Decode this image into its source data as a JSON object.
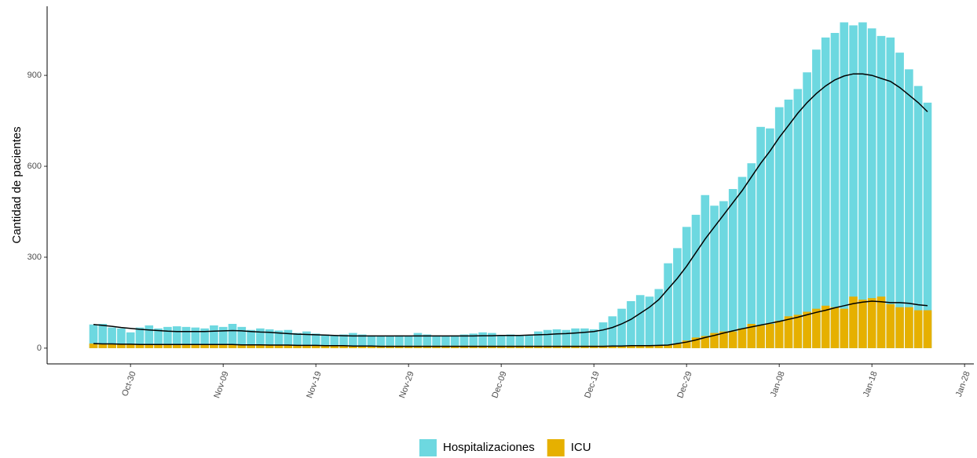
{
  "chart_data": {
    "type": "bar",
    "y_label": "Cantidad de pacientes",
    "x": [
      "Oct-26",
      "Oct-27",
      "Oct-28",
      "Oct-29",
      "Oct-30",
      "Oct-31",
      "Nov-01",
      "Nov-02",
      "Nov-03",
      "Nov-04",
      "Nov-05",
      "Nov-06",
      "Nov-07",
      "Nov-08",
      "Nov-09",
      "Nov-10",
      "Nov-11",
      "Nov-12",
      "Nov-13",
      "Nov-14",
      "Nov-15",
      "Nov-16",
      "Nov-17",
      "Nov-18",
      "Nov-19",
      "Nov-20",
      "Nov-21",
      "Nov-22",
      "Nov-23",
      "Nov-24",
      "Nov-25",
      "Nov-26",
      "Nov-27",
      "Nov-28",
      "Nov-29",
      "Nov-30",
      "Dec-01",
      "Dec-02",
      "Dec-03",
      "Dec-04",
      "Dec-05",
      "Dec-06",
      "Dec-07",
      "Dec-08",
      "Dec-09",
      "Dec-10",
      "Dec-11",
      "Dec-12",
      "Dec-13",
      "Dec-14",
      "Dec-15",
      "Dec-16",
      "Dec-17",
      "Dec-18",
      "Dec-19",
      "Dec-20",
      "Dec-21",
      "Dec-22",
      "Dec-23",
      "Dec-24",
      "Dec-25",
      "Dec-26",
      "Dec-27",
      "Dec-28",
      "Dec-29",
      "Dec-30",
      "Dec-31",
      "Jan-01",
      "Jan-02",
      "Jan-03",
      "Jan-04",
      "Jan-05",
      "Jan-06",
      "Jan-07",
      "Jan-08",
      "Jan-09",
      "Jan-10",
      "Jan-11",
      "Jan-12",
      "Jan-13",
      "Jan-14",
      "Jan-15",
      "Jan-16",
      "Jan-17",
      "Jan-18",
      "Jan-19",
      "Jan-20",
      "Jan-21",
      "Jan-22",
      "Jan-23",
      "Jan-24"
    ],
    "series": [
      {
        "name": "Hospitalizaciones",
        "color": "#6dd8e0",
        "values": [
          78,
          80,
          68,
          65,
          52,
          68,
          75,
          65,
          70,
          72,
          70,
          68,
          65,
          75,
          70,
          80,
          70,
          60,
          65,
          62,
          58,
          60,
          50,
          55,
          48,
          45,
          42,
          45,
          50,
          45,
          42,
          40,
          40,
          42,
          40,
          50,
          45,
          42,
          40,
          42,
          45,
          48,
          52,
          50,
          42,
          45,
          42,
          42,
          55,
          60,
          62,
          60,
          65,
          65,
          62,
          85,
          105,
          130,
          155,
          175,
          170,
          195,
          280,
          330,
          400,
          440,
          505,
          470,
          485,
          525,
          565,
          610,
          730,
          725,
          795,
          820,
          855,
          910,
          985,
          1025,
          1040,
          1075,
          1065,
          1075,
          1055,
          1030,
          1025,
          975,
          920,
          865,
          810
        ]
      },
      {
        "name": "ICU",
        "color": "#e6b000",
        "values": [
          15,
          14,
          13,
          12,
          12,
          12,
          12,
          12,
          12,
          12,
          12,
          13,
          13,
          13,
          12,
          12,
          12,
          11,
          11,
          11,
          10,
          10,
          10,
          10,
          10,
          9,
          9,
          9,
          8,
          8,
          8,
          8,
          8,
          8,
          8,
          8,
          8,
          8,
          8,
          8,
          8,
          8,
          8,
          8,
          8,
          8,
          8,
          8,
          8,
          8,
          8,
          8,
          8,
          8,
          8,
          8,
          8,
          8,
          8,
          8,
          8,
          8,
          10,
          15,
          25,
          35,
          40,
          50,
          55,
          55,
          65,
          80,
          75,
          80,
          90,
          105,
          110,
          120,
          130,
          140,
          135,
          130,
          170,
          160,
          165,
          170,
          145,
          135,
          135,
          125,
          125
        ]
      }
    ],
    "lines": [
      {
        "color": "#000000",
        "values": [
          78,
          75,
          72,
          68,
          65,
          62,
          60,
          58,
          56,
          55,
          55,
          55,
          55,
          56,
          57,
          58,
          57,
          55,
          53,
          52,
          50,
          48,
          46,
          45,
          44,
          43,
          42,
          41,
          40,
          40,
          40,
          40,
          40,
          40,
          40,
          40,
          40,
          40,
          40,
          40,
          40,
          40,
          41,
          41,
          42,
          42,
          42,
          43,
          44,
          45,
          47,
          48,
          50,
          52,
          55,
          60,
          68,
          80,
          95,
          115,
          135,
          160,
          195,
          230,
          270,
          315,
          360,
          400,
          440,
          480,
          520,
          565,
          610,
          650,
          695,
          735,
          775,
          810,
          840,
          865,
          885,
          898,
          905,
          905,
          900,
          890,
          880,
          860,
          835,
          810,
          780
        ]
      },
      {
        "color": "#000000",
        "values": [
          15,
          14,
          14,
          13,
          13,
          12,
          12,
          12,
          12,
          12,
          12,
          12,
          12,
          12,
          12,
          12,
          11,
          11,
          11,
          10,
          10,
          10,
          9,
          9,
          9,
          8,
          8,
          8,
          7,
          7,
          7,
          6,
          6,
          6,
          6,
          6,
          6,
          6,
          6,
          6,
          6,
          6,
          6,
          6,
          6,
          6,
          6,
          6,
          6,
          6,
          6,
          6,
          6,
          6,
          6,
          6,
          7,
          7,
          8,
          8,
          8,
          9,
          10,
          15,
          20,
          27,
          35,
          42,
          50,
          57,
          64,
          70,
          76,
          82,
          88,
          95,
          102,
          110,
          118,
          125,
          133,
          140,
          147,
          152,
          155,
          153,
          150,
          150,
          148,
          143,
          140
        ]
      }
    ],
    "xlim": [
      "Oct-21",
      "Jan-29"
    ],
    "xticks": [
      "Oct-30",
      "Nov-09",
      "Nov-19",
      "Nov-29",
      "Dec-09",
      "Dec-19",
      "Dec-29",
      "Jan-08",
      "Jan-18",
      "Jan-28"
    ],
    "ylim": [
      -52,
      1128
    ],
    "yticks": [
      0,
      300,
      600,
      900
    ],
    "legend": "bottom"
  }
}
